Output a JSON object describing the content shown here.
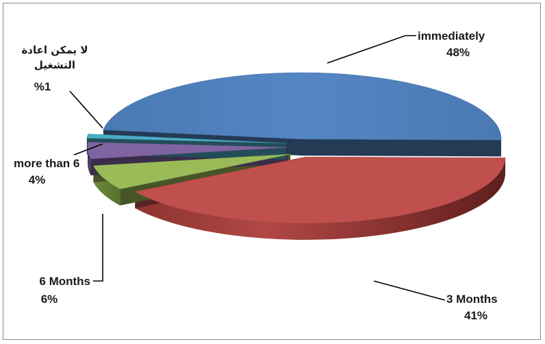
{
  "chart_data": {
    "type": "pie",
    "title": "",
    "three_d": true,
    "slices": [
      {
        "label": "immediately",
        "value": 48,
        "pct": "48%",
        "color": "#4F81BD"
      },
      {
        "label": "3 Months",
        "value": 41,
        "pct": "41%",
        "color": "#C0504D"
      },
      {
        "label": "6 Months",
        "value": 6,
        "pct": "6%",
        "color": "#9BBB59"
      },
      {
        "label": "more than 6",
        "value": 4,
        "pct": "4%",
        "color": "#8064A2"
      },
      {
        "label": "لا يمكن اعادة التشغيل",
        "label_lines": [
          "لا يمكن اعادة",
          "التشغيل"
        ],
        "value": 1,
        "pct": "%1",
        "color": "#4BACC6"
      }
    ],
    "legend": "none"
  }
}
